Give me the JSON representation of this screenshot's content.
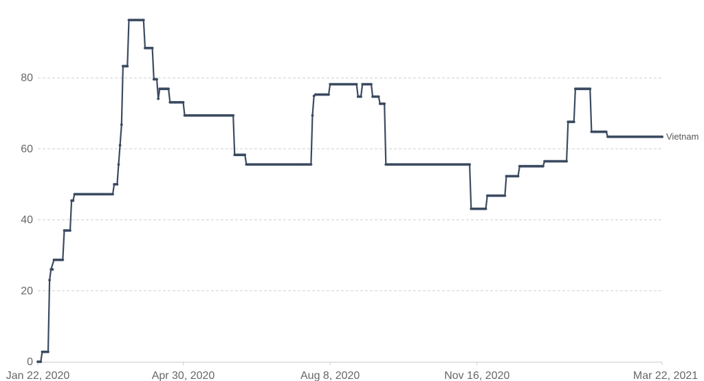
{
  "colors": {
    "series": "#3a4a60",
    "grid": "#cfcfcf",
    "text": "#666666"
  },
  "chart_data": {
    "type": "line",
    "title": "",
    "xlabel": "",
    "ylabel": "",
    "x_tick_labels": [
      "Jan 22, 2020",
      "Apr 30, 2020",
      "Aug 8, 2020",
      "Nov 16, 2020",
      "Mar 22, 2021"
    ],
    "x_ticks": [
      "2020-01-22",
      "2020-04-30",
      "2020-08-08",
      "2020-11-16",
      "2021-03-22"
    ],
    "y_ticks": [
      0,
      20,
      40,
      60,
      80
    ],
    "ylim": [
      0,
      100
    ],
    "xlim": [
      "2020-01-22",
      "2021-03-22"
    ],
    "grid": true,
    "legend": "none",
    "series": [
      {
        "name": "Vietnam",
        "points": [
          [
            "2020-01-22",
            0
          ],
          [
            "2020-01-24",
            0
          ],
          [
            "2020-01-25",
            2.8
          ],
          [
            "2020-01-29",
            2.8
          ],
          [
            "2020-01-30",
            23
          ],
          [
            "2020-01-31",
            26
          ],
          [
            "2020-02-02",
            28.7
          ],
          [
            "2020-02-08",
            28.7
          ],
          [
            "2020-02-09",
            37
          ],
          [
            "2020-02-13",
            37
          ],
          [
            "2020-02-14",
            45.4
          ],
          [
            "2020-02-15",
            45.4
          ],
          [
            "2020-02-16",
            47.2
          ],
          [
            "2020-03-13",
            47.2
          ],
          [
            "2020-03-14",
            50
          ],
          [
            "2020-03-16",
            50
          ],
          [
            "2020-03-17",
            55.6
          ],
          [
            "2020-03-18",
            61
          ],
          [
            "2020-03-19",
            66.8
          ],
          [
            "2020-03-20",
            83.3
          ],
          [
            "2020-03-23",
            83.3
          ],
          [
            "2020-03-24",
            96.3
          ],
          [
            "2020-04-03",
            96.3
          ],
          [
            "2020-04-04",
            88.4
          ],
          [
            "2020-04-09",
            88.4
          ],
          [
            "2020-04-10",
            79.6
          ],
          [
            "2020-04-12",
            79.6
          ],
          [
            "2020-04-13",
            74.1
          ],
          [
            "2020-04-14",
            76.9
          ],
          [
            "2020-04-20",
            76.9
          ],
          [
            "2020-04-21",
            73.1
          ],
          [
            "2020-04-30",
            73.1
          ],
          [
            "2020-05-01",
            69.4
          ],
          [
            "2020-06-03",
            69.4
          ],
          [
            "2020-06-04",
            58.3
          ],
          [
            "2020-06-11",
            58.3
          ],
          [
            "2020-06-12",
            55.6
          ],
          [
            "2020-07-26",
            55.6
          ],
          [
            "2020-07-27",
            69.4
          ],
          [
            "2020-07-28",
            74.9
          ],
          [
            "2020-07-29",
            75.3
          ],
          [
            "2020-08-07",
            75.3
          ],
          [
            "2020-08-08",
            78.2
          ],
          [
            "2020-08-26",
            78.2
          ],
          [
            "2020-08-27",
            74.7
          ],
          [
            "2020-08-29",
            74.7
          ],
          [
            "2020-08-30",
            78.2
          ],
          [
            "2020-09-05",
            78.2
          ],
          [
            "2020-09-06",
            74.7
          ],
          [
            "2020-09-10",
            74.7
          ],
          [
            "2020-09-11",
            72.7
          ],
          [
            "2020-09-14",
            72.7
          ],
          [
            "2020-09-15",
            55.6
          ],
          [
            "2020-11-11",
            55.6
          ],
          [
            "2020-11-12",
            43.1
          ],
          [
            "2020-11-22",
            43.1
          ],
          [
            "2020-11-23",
            46.8
          ],
          [
            "2020-12-05",
            46.8
          ],
          [
            "2020-12-06",
            52.3
          ],
          [
            "2020-12-14",
            52.3
          ],
          [
            "2020-12-15",
            55.1
          ],
          [
            "2020-12-31",
            55.1
          ],
          [
            "2021-01-01",
            56.5
          ],
          [
            "2021-01-16",
            56.5
          ],
          [
            "2021-01-17",
            67.6
          ],
          [
            "2021-01-21",
            67.6
          ],
          [
            "2021-01-22",
            76.9
          ],
          [
            "2021-02-01",
            76.9
          ],
          [
            "2021-02-02",
            64.8
          ],
          [
            "2021-02-12",
            64.8
          ],
          [
            "2021-02-13",
            63.4
          ],
          [
            "2021-03-22",
            63.4
          ]
        ]
      }
    ]
  }
}
